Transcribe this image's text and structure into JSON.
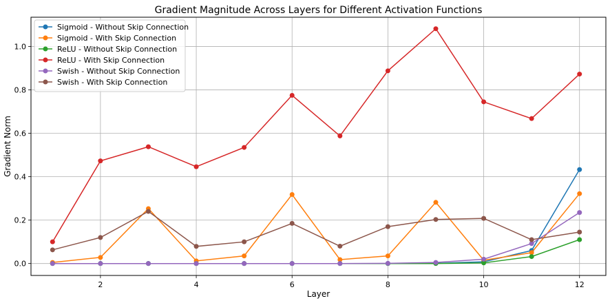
{
  "chart_data": {
    "type": "line",
    "title": "Gradient Magnitude Across Layers for Different Activation Functions",
    "xlabel": "Layer",
    "ylabel": "Gradient Norm",
    "xlim": [
      0.55,
      12.55
    ],
    "ylim": [
      -0.055,
      1.135
    ],
    "xticks": [
      2,
      4,
      6,
      8,
      10,
      12
    ],
    "yticks": [
      0.0,
      0.2,
      0.4,
      0.6,
      0.8,
      1.0
    ],
    "ytick_labels": [
      "0.0",
      "0.2",
      "0.4",
      "0.6",
      "0.8",
      "1.0"
    ],
    "grid": true,
    "legend_position": "top-left",
    "x": [
      1,
      2,
      3,
      4,
      5,
      6,
      7,
      8,
      9,
      10,
      11,
      12
    ],
    "series": [
      {
        "name": "Sigmoid - Without Skip Connection",
        "color": "#1f77b4",
        "values": [
          0.0,
          0.0,
          0.0,
          0.0,
          0.0,
          0.0,
          0.0,
          0.0,
          0.001,
          0.008,
          0.06,
          0.433
        ]
      },
      {
        "name": "Sigmoid - With Skip Connection",
        "color": "#ff7f0e",
        "values": [
          0.005,
          0.028,
          0.253,
          0.012,
          0.035,
          0.318,
          0.018,
          0.035,
          0.282,
          0.015,
          0.05,
          0.322
        ]
      },
      {
        "name": "ReLU - Without Skip Connection",
        "color": "#2ca02c",
        "values": [
          0.0,
          0.0,
          0.0,
          0.0,
          0.0,
          0.0,
          0.0,
          0.0,
          0.0,
          0.003,
          0.032,
          0.11
        ]
      },
      {
        "name": "ReLU - With Skip Connection",
        "color": "#d62728",
        "values": [
          0.1,
          0.473,
          0.538,
          0.446,
          0.535,
          0.775,
          0.588,
          0.888,
          1.082,
          0.745,
          0.668,
          0.873
        ]
      },
      {
        "name": "Swish - Without Skip Connection",
        "color": "#9467bd",
        "values": [
          0.0,
          0.0,
          0.0,
          0.0,
          0.0,
          0.0,
          0.0,
          0.001,
          0.005,
          0.02,
          0.092,
          0.235
        ]
      },
      {
        "name": "Swish - With Skip Connection",
        "color": "#8c564b",
        "values": [
          0.063,
          0.12,
          0.24,
          0.079,
          0.1,
          0.185,
          0.08,
          0.17,
          0.203,
          0.208,
          0.11,
          0.145
        ]
      }
    ]
  }
}
